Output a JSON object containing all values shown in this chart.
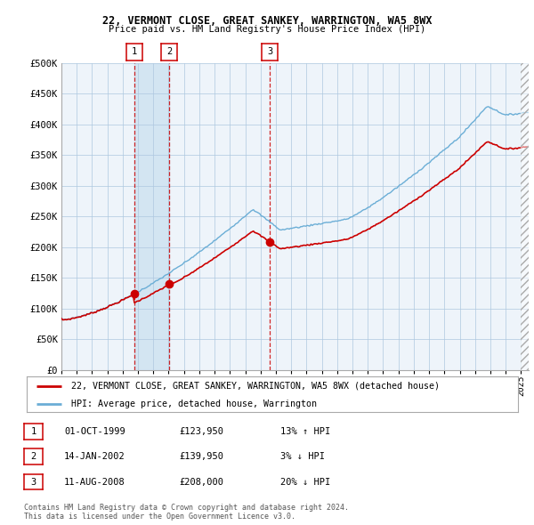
{
  "title1": "22, VERMONT CLOSE, GREAT SANKEY, WARRINGTON, WA5 8WX",
  "title2": "Price paid vs. HM Land Registry's House Price Index (HPI)",
  "ylim": [
    0,
    500000
  ],
  "yticks": [
    0,
    50000,
    100000,
    150000,
    200000,
    250000,
    300000,
    350000,
    400000,
    450000,
    500000
  ],
  "ytick_labels": [
    "£0",
    "£50K",
    "£100K",
    "£150K",
    "£200K",
    "£250K",
    "£300K",
    "£350K",
    "£400K",
    "£450K",
    "£500K"
  ],
  "hpi_color": "#6baed6",
  "price_color": "#cc0000",
  "vline_color": "#cc0000",
  "bg_color": "#ffffff",
  "plot_bg_color": "#eef4fa",
  "grid_color": "#aec8e0",
  "shade_color": "#d0e4f2",
  "purchases": [
    {
      "date_num": 1999.75,
      "price": 123950,
      "label": "1"
    },
    {
      "date_num": 2002.04,
      "price": 139950,
      "label": "2"
    },
    {
      "date_num": 2008.62,
      "price": 208000,
      "label": "3"
    }
  ],
  "xlim_start": 1995.0,
  "xlim_end": 2025.5,
  "legend_entries": [
    {
      "label": "22, VERMONT CLOSE, GREAT SANKEY, WARRINGTON, WA5 8WX (detached house)",
      "color": "#cc0000"
    },
    {
      "label": "HPI: Average price, detached house, Warrington",
      "color": "#6baed6"
    }
  ],
  "table_rows": [
    {
      "num": "1",
      "date": "01-OCT-1999",
      "price": "£123,950",
      "hpi": "13% ↑ HPI"
    },
    {
      "num": "2",
      "date": "14-JAN-2002",
      "price": "£139,950",
      "hpi": "3% ↓ HPI"
    },
    {
      "num": "3",
      "date": "11-AUG-2008",
      "price": "£208,000",
      "hpi": "20% ↓ HPI"
    }
  ],
  "footnote1": "Contains HM Land Registry data © Crown copyright and database right 2024.",
  "footnote2": "This data is licensed under the Open Government Licence v3.0."
}
